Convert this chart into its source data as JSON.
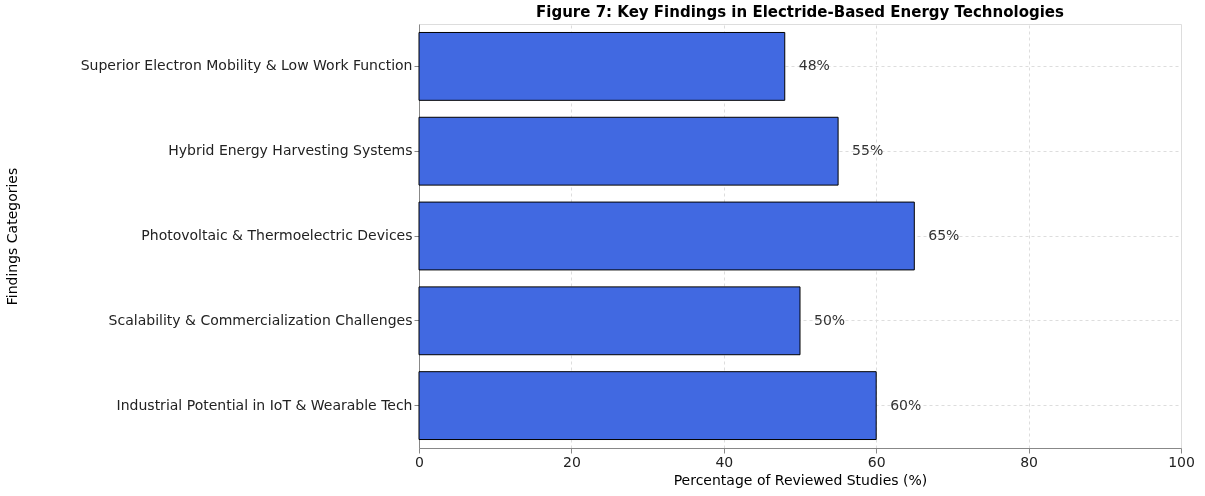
{
  "chart_data": {
    "type": "bar",
    "orientation": "horizontal",
    "title": "Figure 7: Key Findings in Electride-Based Energy Technologies",
    "xlabel": "Percentage of Reviewed Studies (%)",
    "ylabel": "Findings Categories",
    "categories": [
      "Superior Electron Mobility & Low Work Function",
      "Hybrid Energy Harvesting Systems",
      "Photovoltaic & Thermoelectric Devices",
      "Scalability & Commercialization Challenges",
      "Industrial Potential in IoT & Wearable Tech"
    ],
    "values": [
      48,
      55,
      65,
      50,
      60
    ],
    "color": "#4169e1",
    "value_labels": [
      "48%",
      "55%",
      "65%",
      "50%",
      "60%"
    ],
    "xlim": [
      0,
      100
    ],
    "xticks": [
      0,
      20,
      40,
      60,
      80,
      100
    ],
    "grid": true
  }
}
